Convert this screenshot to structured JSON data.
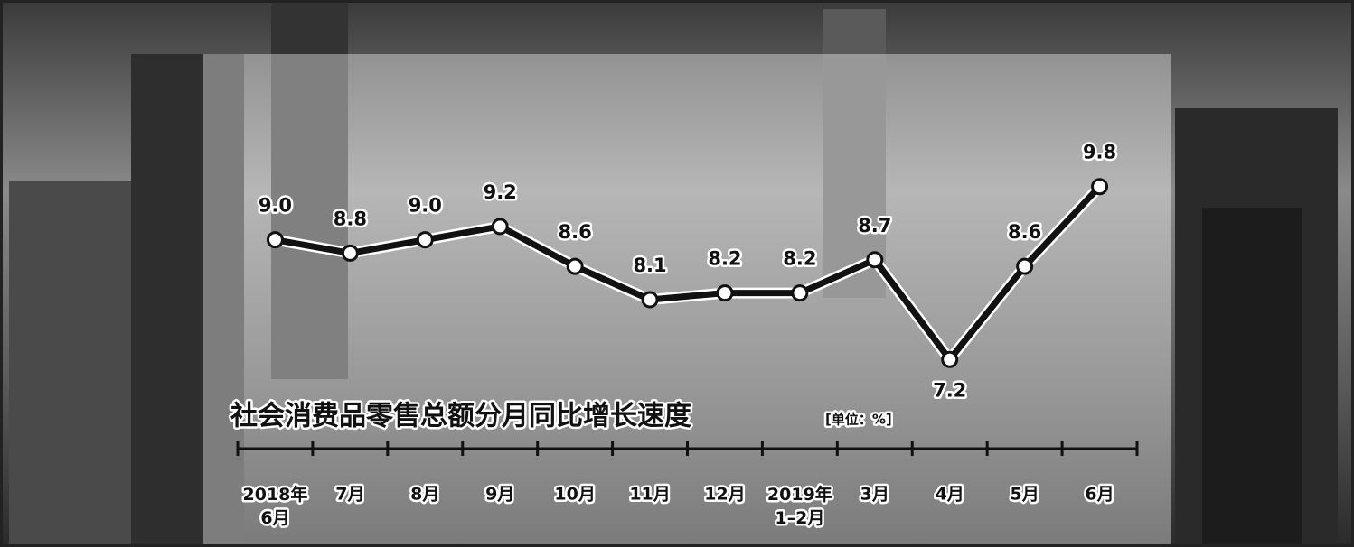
{
  "chart_data": {
    "type": "line",
    "title": "社会消费品零售总额分月同比增长速度",
    "unit_label": "[单位：%]",
    "categories": [
      "2018年\n6月",
      "7月",
      "8月",
      "9月",
      "10月",
      "11月",
      "12月",
      "2019年\n1–2月",
      "3月",
      "4月",
      "5月",
      "6月"
    ],
    "values": [
      9.0,
      8.8,
      9.0,
      9.2,
      8.6,
      8.1,
      8.2,
      8.2,
      8.7,
      7.2,
      8.6,
      9.8
    ],
    "value_labels": [
      "9.0",
      "8.8",
      "9.0",
      "9.2",
      "8.6",
      "8.1",
      "8.2",
      "8.2",
      "8.7",
      "7.2",
      "8.6",
      "9.8"
    ],
    "color": "#111111",
    "ylim": [
      7,
      10
    ]
  }
}
